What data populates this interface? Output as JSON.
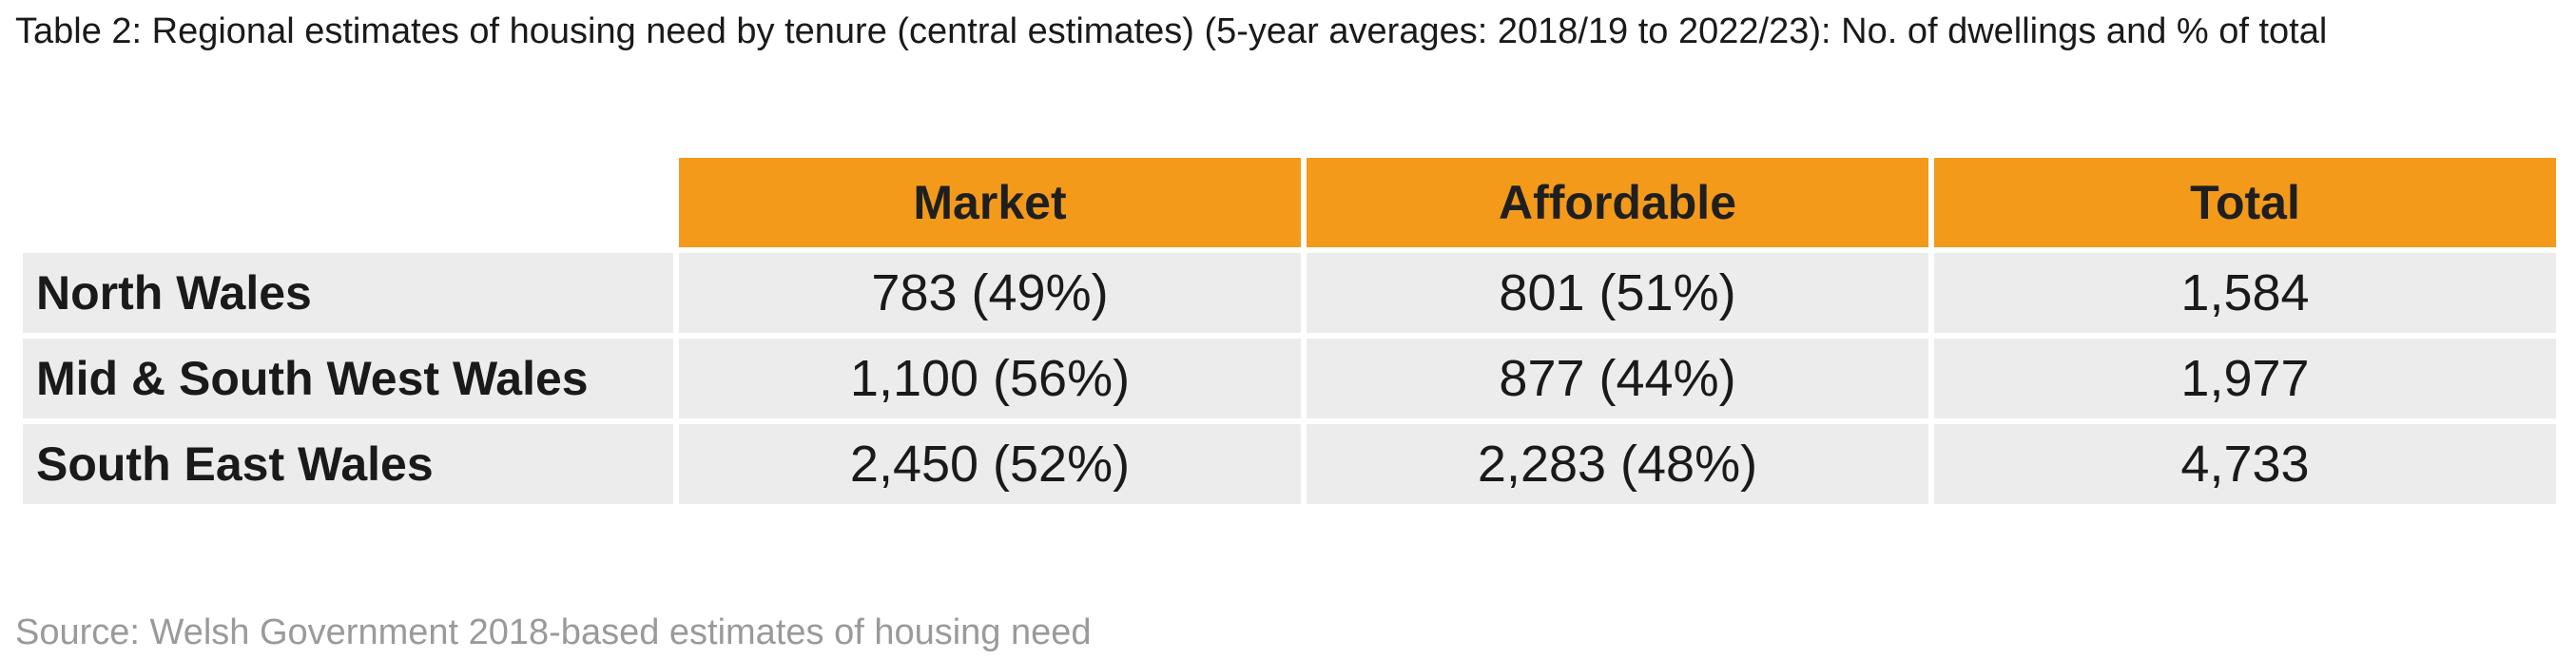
{
  "caption": "Table 2: Regional estimates of housing need by tenure (central estimates) (5-year averages: 2018/19 to 2022/23): No. of dwellings and % of total",
  "columns": [
    "Market",
    "Affordable",
    "Total"
  ],
  "rows": [
    {
      "region": "North Wales",
      "market": "783 (49%)",
      "affordable": "801 (51%)",
      "total": "1,584"
    },
    {
      "region": "Mid & South West Wales",
      "market": "1,100 (56%)",
      "affordable": "877 (44%)",
      "total": "1,977"
    },
    {
      "region": "South East Wales",
      "market": "2,450 (52%)",
      "affordable": "2,283 (48%)",
      "total": "4,733"
    }
  ],
  "source": "Source: Welsh Government 2018-based estimates of housing need",
  "colors": {
    "header_bg": "#f39a1b",
    "cell_bg": "#ececec",
    "source_text": "#9a9a9a"
  }
}
